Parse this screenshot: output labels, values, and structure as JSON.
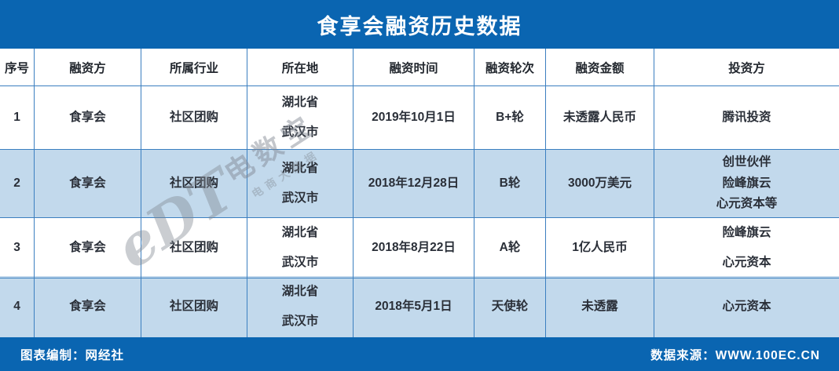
{
  "title": "食享会融资历史数据",
  "colors": {
    "accent_blue": "#0a65b1",
    "stripe_blue": "#c2d9ec",
    "grid_border_blue": "#3b7fc0",
    "text_dark": "#2a2f38"
  },
  "chart_data": {
    "type": "table",
    "title": "食享会融资历史数据",
    "columns": [
      "序号",
      "融资方",
      "所属行业",
      "所在地",
      "融资时间",
      "融资轮次",
      "融资金额",
      "投资方"
    ],
    "rows": [
      [
        "1",
        "食享会",
        "社区团购",
        "湖北省\n武汉市",
        "2019年10月1日",
        "B+轮",
        "未透露人民币",
        "腾讯投资"
      ],
      [
        "2",
        "食享会",
        "社区团购",
        "湖北省\n武汉市",
        "2018年12月28日",
        "B轮",
        "3000万美元",
        "创世伙伴\n险峰旗云\n心元资本等"
      ],
      [
        "3",
        "食享会",
        "社区团购",
        "湖北省\n武汉市",
        "2018年8月22日",
        "A轮",
        "1亿人民币",
        "险峰旗云\n心元资本"
      ],
      [
        "4",
        "食享会",
        "社区团购",
        "湖北省\n武汉市",
        "2018年5月1日",
        "天使轮",
        "未透露",
        "心元资本"
      ]
    ],
    "layout": {
      "striped_rows": [
        2,
        4
      ],
      "grid": true
    }
  },
  "watermark": {
    "logo": "eDT",
    "brand": "电数宝",
    "tagline": "电商大数据"
  },
  "footer": {
    "left": "图表编制：网经社",
    "right": "数据来源：WWW.100EC.CN"
  }
}
